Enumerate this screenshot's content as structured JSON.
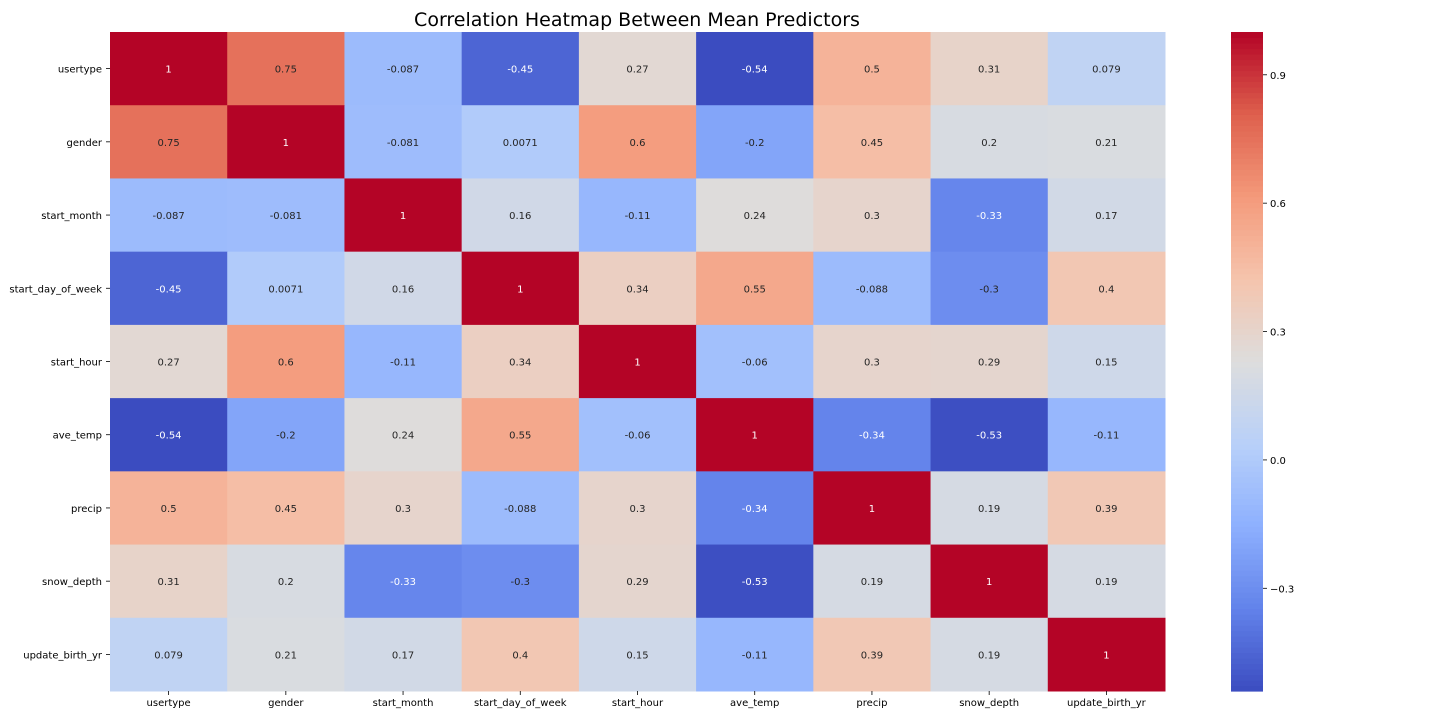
{
  "chart_data": {
    "type": "heatmap",
    "title": "Correlation Heatmap Between Mean Predictors",
    "xlabel": "",
    "ylabel": "",
    "colormap": "coolwarm",
    "vmin": -0.54,
    "vmax": 1.0,
    "x_categories": [
      "usertype",
      "gender",
      "start_month",
      "start_day_of_week",
      "start_hour",
      "ave_temp",
      "precip",
      "snow_depth",
      "update_birth_yr"
    ],
    "y_categories": [
      "usertype",
      "gender",
      "start_month",
      "start_day_of_week",
      "start_hour",
      "ave_temp",
      "precip",
      "snow_depth",
      "update_birth_yr"
    ],
    "values": [
      [
        1,
        0.75,
        -0.087,
        -0.45,
        0.27,
        -0.54,
        0.5,
        0.31,
        0.079
      ],
      [
        0.75,
        1,
        -0.081,
        0.0071,
        0.6,
        -0.2,
        0.45,
        0.2,
        0.21
      ],
      [
        -0.087,
        -0.081,
        1,
        0.16,
        -0.11,
        0.24,
        0.3,
        -0.33,
        0.17
      ],
      [
        -0.45,
        0.0071,
        0.16,
        1,
        0.34,
        0.55,
        -0.088,
        -0.3,
        0.4
      ],
      [
        0.27,
        0.6,
        -0.11,
        0.34,
        1,
        -0.06,
        0.3,
        0.29,
        0.15
      ],
      [
        -0.54,
        -0.2,
        0.24,
        0.55,
        -0.06,
        1,
        -0.34,
        -0.53,
        -0.11
      ],
      [
        0.5,
        0.45,
        0.3,
        -0.088,
        0.3,
        -0.34,
        1,
        0.19,
        0.39
      ],
      [
        0.31,
        0.2,
        -0.33,
        -0.3,
        0.29,
        -0.53,
        0.19,
        1,
        0.19
      ],
      [
        0.079,
        0.21,
        0.17,
        0.4,
        0.15,
        -0.11,
        0.39,
        0.19,
        1
      ]
    ],
    "annotations": [
      [
        "1",
        "0.75",
        "-0.087",
        "-0.45",
        "0.27",
        "-0.54",
        "0.5",
        "0.31",
        "0.079"
      ],
      [
        "0.75",
        "1",
        "-0.081",
        "0.0071",
        "0.6",
        "-0.2",
        "0.45",
        "0.2",
        "0.21"
      ],
      [
        "-0.087",
        "-0.081",
        "1",
        "0.16",
        "-0.11",
        "0.24",
        "0.3",
        "-0.33",
        "0.17"
      ],
      [
        "-0.45",
        "0.0071",
        "0.16",
        "1",
        "0.34",
        "0.55",
        "-0.088",
        "-0.3",
        "0.4"
      ],
      [
        "0.27",
        "0.6",
        "-0.11",
        "0.34",
        "1",
        "-0.06",
        "0.3",
        "0.29",
        "0.15"
      ],
      [
        "-0.54",
        "-0.2",
        "0.24",
        "0.55",
        "-0.06",
        "1",
        "-0.34",
        "-0.53",
        "-0.11"
      ],
      [
        "0.5",
        "0.45",
        "0.3",
        "-0.088",
        "0.3",
        "-0.34",
        "1",
        "0.19",
        "0.39"
      ],
      [
        "0.31",
        "0.2",
        "-0.33",
        "-0.3",
        "0.29",
        "-0.53",
        "0.19",
        "1",
        "0.19"
      ],
      [
        "0.079",
        "0.21",
        "0.17",
        "0.4",
        "0.15",
        "-0.11",
        "0.39",
        "0.19",
        "1"
      ]
    ],
    "colorbar": {
      "ticks": [
        0.9,
        0.6,
        0.3,
        0.0,
        -0.3
      ],
      "tick_labels": [
        "0.9",
        "0.6",
        "0.3",
        "0.0",
        "−0.3"
      ]
    }
  }
}
